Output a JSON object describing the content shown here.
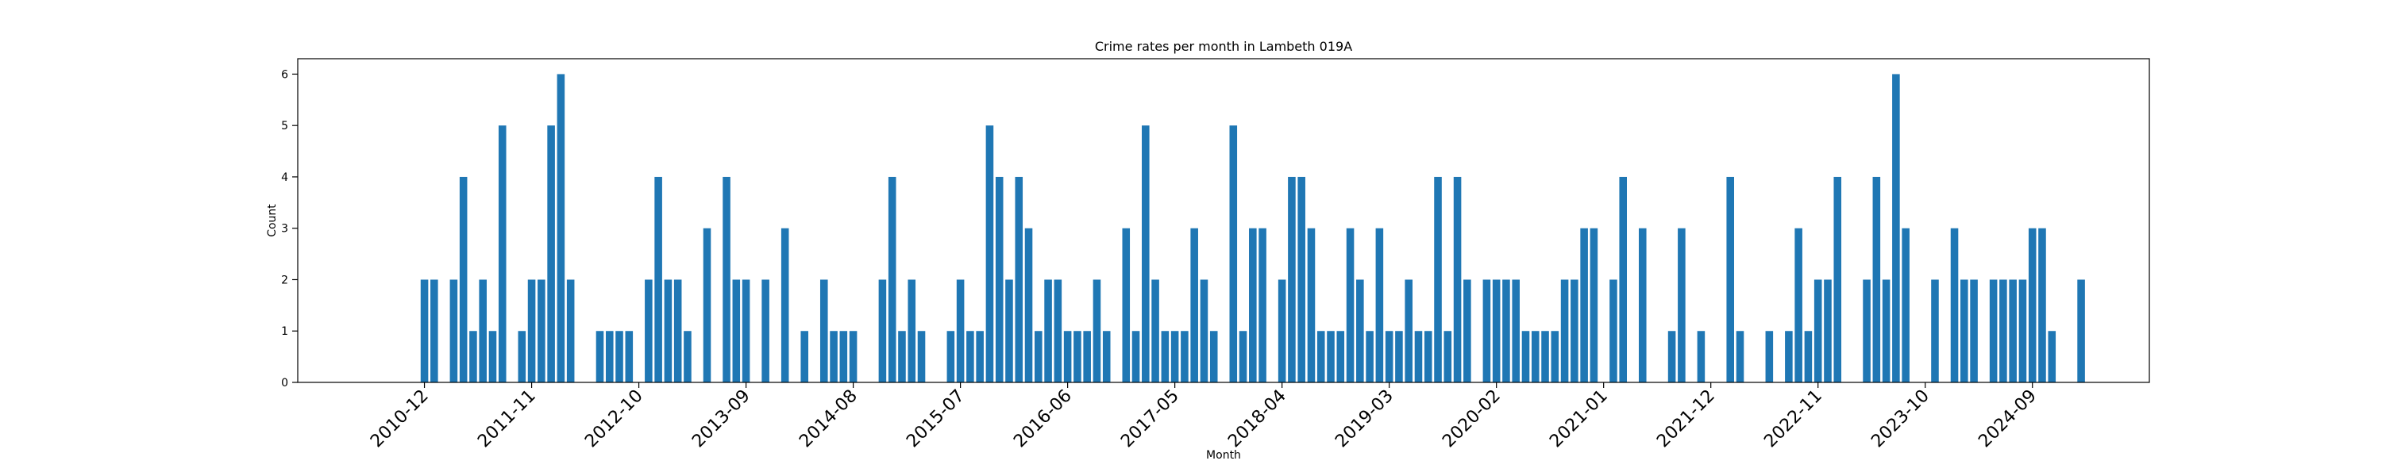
{
  "chart_data": {
    "type": "bar",
    "title": "Crime rates per month in Lambeth 019A",
    "xlabel": "Month",
    "ylabel": "Count",
    "ylim": [
      0,
      6.3
    ],
    "yticks": [
      0,
      1,
      2,
      3,
      4,
      5,
      6
    ],
    "xlim": [
      "2009-11",
      "2025-09"
    ],
    "xtick_labels": [
      "2010-12",
      "2011-11",
      "2012-10",
      "2013-09",
      "2014-08",
      "2015-07",
      "2016-06",
      "2017-05",
      "2018-04",
      "2019-03",
      "2020-02",
      "2021-01",
      "2021-12",
      "2022-11",
      "2023-10",
      "2024-09"
    ],
    "grid": false,
    "color": "#1f77b4",
    "points": [
      {
        "x": "2010-12",
        "y": 2
      },
      {
        "x": "2011-01",
        "y": 2
      },
      {
        "x": "2011-03",
        "y": 2
      },
      {
        "x": "2011-04",
        "y": 4
      },
      {
        "x": "2011-05",
        "y": 1
      },
      {
        "x": "2011-06",
        "y": 2
      },
      {
        "x": "2011-07",
        "y": 1
      },
      {
        "x": "2011-08",
        "y": 5
      },
      {
        "x": "2011-10",
        "y": 1
      },
      {
        "x": "2011-11",
        "y": 2
      },
      {
        "x": "2011-12",
        "y": 2
      },
      {
        "x": "2012-01",
        "y": 5
      },
      {
        "x": "2012-02",
        "y": 6
      },
      {
        "x": "2012-03",
        "y": 2
      },
      {
        "x": "2012-06",
        "y": 1
      },
      {
        "x": "2012-07",
        "y": 1
      },
      {
        "x": "2012-08",
        "y": 1
      },
      {
        "x": "2012-09",
        "y": 1
      },
      {
        "x": "2012-11",
        "y": 2
      },
      {
        "x": "2012-12",
        "y": 4
      },
      {
        "x": "2013-01",
        "y": 2
      },
      {
        "x": "2013-02",
        "y": 2
      },
      {
        "x": "2013-03",
        "y": 1
      },
      {
        "x": "2013-05",
        "y": 3
      },
      {
        "x": "2013-07",
        "y": 4
      },
      {
        "x": "2013-08",
        "y": 2
      },
      {
        "x": "2013-09",
        "y": 2
      },
      {
        "x": "2013-11",
        "y": 2
      },
      {
        "x": "2014-01",
        "y": 3
      },
      {
        "x": "2014-03",
        "y": 1
      },
      {
        "x": "2014-05",
        "y": 2
      },
      {
        "x": "2014-06",
        "y": 1
      },
      {
        "x": "2014-07",
        "y": 1
      },
      {
        "x": "2014-08",
        "y": 1
      },
      {
        "x": "2014-11",
        "y": 2
      },
      {
        "x": "2014-12",
        "y": 4
      },
      {
        "x": "2015-01",
        "y": 1
      },
      {
        "x": "2015-02",
        "y": 2
      },
      {
        "x": "2015-03",
        "y": 1
      },
      {
        "x": "2015-06",
        "y": 1
      },
      {
        "x": "2015-07",
        "y": 2
      },
      {
        "x": "2015-08",
        "y": 1
      },
      {
        "x": "2015-09",
        "y": 1
      },
      {
        "x": "2015-10",
        "y": 5
      },
      {
        "x": "2015-11",
        "y": 4
      },
      {
        "x": "2015-12",
        "y": 2
      },
      {
        "x": "2016-01",
        "y": 4
      },
      {
        "x": "2016-02",
        "y": 3
      },
      {
        "x": "2016-03",
        "y": 1
      },
      {
        "x": "2016-04",
        "y": 2
      },
      {
        "x": "2016-05",
        "y": 2
      },
      {
        "x": "2016-06",
        "y": 1
      },
      {
        "x": "2016-07",
        "y": 1
      },
      {
        "x": "2016-08",
        "y": 1
      },
      {
        "x": "2016-09",
        "y": 2
      },
      {
        "x": "2016-10",
        "y": 1
      },
      {
        "x": "2016-12",
        "y": 3
      },
      {
        "x": "2017-01",
        "y": 1
      },
      {
        "x": "2017-02",
        "y": 5
      },
      {
        "x": "2017-03",
        "y": 2
      },
      {
        "x": "2017-04",
        "y": 1
      },
      {
        "x": "2017-05",
        "y": 1
      },
      {
        "x": "2017-06",
        "y": 1
      },
      {
        "x": "2017-07",
        "y": 3
      },
      {
        "x": "2017-08",
        "y": 2
      },
      {
        "x": "2017-09",
        "y": 1
      },
      {
        "x": "2017-11",
        "y": 5
      },
      {
        "x": "2017-12",
        "y": 1
      },
      {
        "x": "2018-01",
        "y": 3
      },
      {
        "x": "2018-02",
        "y": 3
      },
      {
        "x": "2018-04",
        "y": 2
      },
      {
        "x": "2018-05",
        "y": 4
      },
      {
        "x": "2018-06",
        "y": 4
      },
      {
        "x": "2018-07",
        "y": 3
      },
      {
        "x": "2018-08",
        "y": 1
      },
      {
        "x": "2018-09",
        "y": 1
      },
      {
        "x": "2018-10",
        "y": 1
      },
      {
        "x": "2018-11",
        "y": 3
      },
      {
        "x": "2018-12",
        "y": 2
      },
      {
        "x": "2019-01",
        "y": 1
      },
      {
        "x": "2019-02",
        "y": 3
      },
      {
        "x": "2019-03",
        "y": 1
      },
      {
        "x": "2019-04",
        "y": 1
      },
      {
        "x": "2019-05",
        "y": 2
      },
      {
        "x": "2019-06",
        "y": 1
      },
      {
        "x": "2019-07",
        "y": 1
      },
      {
        "x": "2019-08",
        "y": 4
      },
      {
        "x": "2019-09",
        "y": 1
      },
      {
        "x": "2019-10",
        "y": 4
      },
      {
        "x": "2019-11",
        "y": 2
      },
      {
        "x": "2020-01",
        "y": 2
      },
      {
        "x": "2020-02",
        "y": 2
      },
      {
        "x": "2020-03",
        "y": 2
      },
      {
        "x": "2020-04",
        "y": 2
      },
      {
        "x": "2020-05",
        "y": 1
      },
      {
        "x": "2020-06",
        "y": 1
      },
      {
        "x": "2020-07",
        "y": 1
      },
      {
        "x": "2020-08",
        "y": 1
      },
      {
        "x": "2020-09",
        "y": 2
      },
      {
        "x": "2020-10",
        "y": 2
      },
      {
        "x": "2020-11",
        "y": 3
      },
      {
        "x": "2020-12",
        "y": 3
      },
      {
        "x": "2021-02",
        "y": 2
      },
      {
        "x": "2021-03",
        "y": 4
      },
      {
        "x": "2021-05",
        "y": 3
      },
      {
        "x": "2021-08",
        "y": 1
      },
      {
        "x": "2021-09",
        "y": 3
      },
      {
        "x": "2021-11",
        "y": 1
      },
      {
        "x": "2022-02",
        "y": 4
      },
      {
        "x": "2022-03",
        "y": 1
      },
      {
        "x": "2022-06",
        "y": 1
      },
      {
        "x": "2022-08",
        "y": 1
      },
      {
        "x": "2022-09",
        "y": 3
      },
      {
        "x": "2022-10",
        "y": 1
      },
      {
        "x": "2022-11",
        "y": 2
      },
      {
        "x": "2022-12",
        "y": 2
      },
      {
        "x": "2023-01",
        "y": 4
      },
      {
        "x": "2023-04",
        "y": 2
      },
      {
        "x": "2023-05",
        "y": 4
      },
      {
        "x": "2023-06",
        "y": 2
      },
      {
        "x": "2023-07",
        "y": 6
      },
      {
        "x": "2023-08",
        "y": 3
      },
      {
        "x": "2023-11",
        "y": 2
      },
      {
        "x": "2024-01",
        "y": 3
      },
      {
        "x": "2024-02",
        "y": 2
      },
      {
        "x": "2024-03",
        "y": 2
      },
      {
        "x": "2024-05",
        "y": 2
      },
      {
        "x": "2024-06",
        "y": 2
      },
      {
        "x": "2024-07",
        "y": 2
      },
      {
        "x": "2024-08",
        "y": 2
      },
      {
        "x": "2024-09",
        "y": 3
      },
      {
        "x": "2024-10",
        "y": 3
      },
      {
        "x": "2024-11",
        "y": 1
      },
      {
        "x": "2025-02",
        "y": 2
      }
    ]
  }
}
